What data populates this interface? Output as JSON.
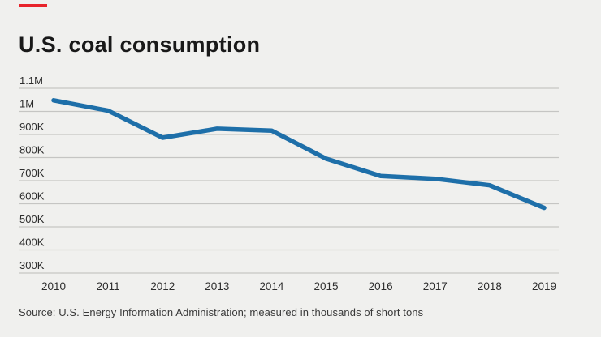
{
  "title": "U.S. coal consumption",
  "source": "Source: U.S. Energy Information Administration; measured in thousands of short tons",
  "colors": {
    "accent": "#e8242b",
    "background": "#f0f0ee",
    "gridline": "#c5c5c3",
    "axis_text": "#2d2d2d",
    "line": "#1e6fa9"
  },
  "chart_data": {
    "type": "line",
    "title": "U.S. coal consumption",
    "x": [
      2010,
      2011,
      2012,
      2013,
      2014,
      2015,
      2016,
      2017,
      2018,
      2019
    ],
    "series": [
      {
        "name": "U.S. coal consumption (thousands of short tons)",
        "values": [
          1048000,
          1003000,
          886000,
          925000,
          917000,
          795000,
          720000,
          708000,
          680000,
          582000
        ]
      }
    ],
    "xlabel": "",
    "ylabel": "",
    "units": "thousands of short tons",
    "ylim": [
      300000,
      1100000
    ],
    "yticks": [
      {
        "label": "1.1M",
        "value": 1100000
      },
      {
        "label": "1M",
        "value": 1000000
      },
      {
        "label": "900K",
        "value": 900000
      },
      {
        "label": "800K",
        "value": 800000
      },
      {
        "label": "700K",
        "value": 700000
      },
      {
        "label": "600K",
        "value": 600000
      },
      {
        "label": "500K",
        "value": 500000
      },
      {
        "label": "400K",
        "value": 400000
      },
      {
        "label": "300K",
        "value": 300000
      }
    ],
    "grid": "horizontal",
    "legend": "none",
    "line_color": "#1e6fa9"
  }
}
